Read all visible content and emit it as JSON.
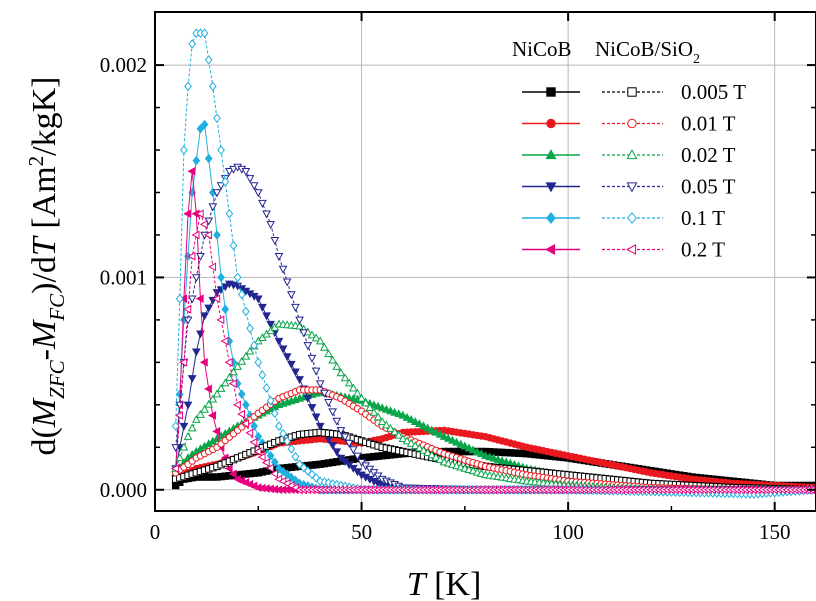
{
  "chart_data": {
    "type": "line",
    "xlim": [
      0,
      160
    ],
    "ylim": [
      -0.0001,
      0.00225
    ],
    "grid": true,
    "x_ticks": [
      {
        "value": 0,
        "label": "0"
      },
      {
        "value": 50,
        "label": "50"
      },
      {
        "value": 100,
        "label": "100"
      },
      {
        "value": 150,
        "label": "150"
      }
    ],
    "y_ticks": [
      {
        "value": 0.0,
        "label": "0.000"
      },
      {
        "value": 0.001,
        "label": "0.001"
      },
      {
        "value": 0.002,
        "label": "0.002"
      }
    ],
    "xlabel": {
      "italic": "T",
      "rest": " [K]"
    },
    "ylabel": {
      "p1": "d(",
      "m1": "M",
      "s1": "ZFC",
      "p2": "-",
      "m2": "M",
      "s2": "FC",
      "p3": ")/d",
      "t": "T",
      "p4": " [Am",
      "sup": "2",
      "p5": "/kgK]"
    },
    "legend": {
      "position": "top-right",
      "headers": {
        "filled_main": "NiCoB",
        "open_main": "NiCoB/SiO",
        "open_sub": "2"
      },
      "entries": [
        "0.005 T",
        "0.01 T",
        "0.02 T",
        "0.05 T",
        "0.1 T",
        "0.2 T"
      ]
    },
    "series": [
      {
        "field": "0.005 T",
        "sample": "NiCoB",
        "color": "#000000",
        "marker": "square",
        "filled": true,
        "points": [
          [
            5,
            2e-05
          ],
          [
            7,
            5e-05
          ],
          [
            10,
            6e-05
          ],
          [
            15,
            6e-05
          ],
          [
            20,
            7e-05
          ],
          [
            25,
            8e-05
          ],
          [
            30,
            0.0001
          ],
          [
            40,
            0.00012
          ],
          [
            50,
            0.00015
          ],
          [
            60,
            0.00017
          ],
          [
            70,
            0.00018
          ],
          [
            80,
            0.00018
          ],
          [
            90,
            0.00017
          ],
          [
            100,
            0.00015
          ],
          [
            110,
            0.00012
          ],
          [
            120,
            9e-05
          ],
          [
            130,
            6e-05
          ],
          [
            140,
            4e-05
          ],
          [
            150,
            2e-05
          ],
          [
            160,
            2e-05
          ]
        ]
      },
      {
        "field": "0.005 T",
        "sample": "NiCoB/SiO2",
        "color": "#000000",
        "marker": "square",
        "filled": false,
        "points": [
          [
            5,
            5e-05
          ],
          [
            10,
            8e-05
          ],
          [
            15,
            0.00011
          ],
          [
            20,
            0.00015
          ],
          [
            25,
            0.00019
          ],
          [
            30,
            0.00023
          ],
          [
            35,
            0.00026
          ],
          [
            40,
            0.00027
          ],
          [
            45,
            0.00026
          ],
          [
            50,
            0.00023
          ],
          [
            55,
            0.0002
          ],
          [
            60,
            0.00018
          ],
          [
            70,
            0.00014
          ],
          [
            80,
            0.00011
          ],
          [
            90,
            9e-05
          ],
          [
            100,
            7e-05
          ],
          [
            110,
            5e-05
          ],
          [
            120,
            3e-05
          ],
          [
            140,
            1e-05
          ],
          [
            160,
            0.0
          ]
        ]
      },
      {
        "field": "0.01 T",
        "sample": "NiCoB",
        "color": "#e8191f",
        "marker": "circle",
        "filled": true,
        "points": [
          [
            5,
            5e-05
          ],
          [
            8,
            8e-05
          ],
          [
            10,
            0.0001
          ],
          [
            15,
            0.00012
          ],
          [
            20,
            0.00015
          ],
          [
            25,
            0.00018
          ],
          [
            30,
            0.00022
          ],
          [
            40,
            0.00024
          ],
          [
            50,
            0.00022
          ],
          [
            55,
            0.00024
          ],
          [
            60,
            0.00027
          ],
          [
            70,
            0.00028
          ],
          [
            80,
            0.00025
          ],
          [
            90,
            0.0002
          ],
          [
            100,
            0.00016
          ],
          [
            110,
            0.00012
          ],
          [
            120,
            8e-05
          ],
          [
            130,
            5e-05
          ],
          [
            140,
            3e-05
          ],
          [
            150,
            2e-05
          ],
          [
            160,
            1e-05
          ]
        ]
      },
      {
        "field": "0.01 T",
        "sample": "NiCoB/SiO2",
        "color": "#e8191f",
        "marker": "circle",
        "filled": false,
        "points": [
          [
            5,
            8e-05
          ],
          [
            8,
            0.00012
          ],
          [
            10,
            0.00015
          ],
          [
            15,
            0.0002
          ],
          [
            20,
            0.00028
          ],
          [
            25,
            0.00036
          ],
          [
            30,
            0.00043
          ],
          [
            35,
            0.00047
          ],
          [
            40,
            0.00047
          ],
          [
            45,
            0.00043
          ],
          [
            50,
            0.00037
          ],
          [
            55,
            0.0003
          ],
          [
            60,
            0.00025
          ],
          [
            70,
            0.00017
          ],
          [
            80,
            0.00011
          ],
          [
            90,
            7e-05
          ],
          [
            100,
            4e-05
          ],
          [
            120,
            1e-05
          ],
          [
            140,
            0.0
          ],
          [
            160,
            0.0
          ]
        ]
      },
      {
        "field": "0.02 T",
        "sample": "NiCoB",
        "color": "#0aa54a",
        "marker": "triangle-up",
        "filled": true,
        "points": [
          [
            5,
            8e-05
          ],
          [
            8,
            0.00015
          ],
          [
            10,
            0.00018
          ],
          [
            15,
            0.00024
          ],
          [
            20,
            0.0003
          ],
          [
            25,
            0.00035
          ],
          [
            30,
            0.0004
          ],
          [
            40,
            0.00046
          ],
          [
            50,
            0.00042
          ],
          [
            60,
            0.00035
          ],
          [
            70,
            0.00025
          ],
          [
            80,
            0.00016
          ],
          [
            90,
            0.0001
          ],
          [
            100,
            6e-05
          ],
          [
            110,
            3e-05
          ],
          [
            130,
            1e-05
          ],
          [
            160,
            0.0
          ]
        ]
      },
      {
        "field": "0.02 T",
        "sample": "NiCoB/SiO2",
        "color": "#0aa54a",
        "marker": "triangle-up",
        "filled": false,
        "points": [
          [
            5,
            0.0001
          ],
          [
            8,
            0.00025
          ],
          [
            10,
            0.00033
          ],
          [
            15,
            0.00045
          ],
          [
            20,
            0.00058
          ],
          [
            25,
            0.0007
          ],
          [
            30,
            0.00078
          ],
          [
            35,
            0.00077
          ],
          [
            40,
            0.0007
          ],
          [
            45,
            0.00055
          ],
          [
            50,
            0.00043
          ],
          [
            55,
            0.00032
          ],
          [
            60,
            0.00024
          ],
          [
            70,
            0.00013
          ],
          [
            80,
            7e-05
          ],
          [
            90,
            4e-05
          ],
          [
            100,
            2e-05
          ],
          [
            120,
            0.0
          ],
          [
            160,
            0.0
          ]
        ]
      },
      {
        "field": "0.05 T",
        "sample": "NiCoB",
        "color": "#23268f",
        "marker": "triangle-down",
        "filled": true,
        "points": [
          [
            5,
            0.0001
          ],
          [
            8,
            0.0004
          ],
          [
            10,
            0.00065
          ],
          [
            12,
            0.00082
          ],
          [
            15,
            0.00093
          ],
          [
            18,
            0.00097
          ],
          [
            20,
            0.00096
          ],
          [
            25,
            0.0009
          ],
          [
            30,
            0.0007
          ],
          [
            35,
            0.00052
          ],
          [
            40,
            0.0003
          ],
          [
            45,
            0.00015
          ],
          [
            50,
            7e-05
          ],
          [
            55,
            2e-05
          ],
          [
            60,
            0.0
          ],
          [
            100,
            0.0
          ],
          [
            160,
            0.0
          ]
        ]
      },
      {
        "field": "0.05 T",
        "sample": "NiCoB/SiO2",
        "color": "#23268f",
        "marker": "triangle-down",
        "filled": false,
        "points": [
          [
            5,
            0.0002
          ],
          [
            8,
            0.0008
          ],
          [
            10,
            0.001
          ],
          [
            12,
            0.0012
          ],
          [
            15,
            0.0014
          ],
          [
            18,
            0.0015
          ],
          [
            20,
            0.00152
          ],
          [
            22,
            0.0015
          ],
          [
            25,
            0.0014
          ],
          [
            28,
            0.00125
          ],
          [
            30,
            0.0011
          ],
          [
            35,
            0.0008
          ],
          [
            40,
            0.0005
          ],
          [
            45,
            0.00028
          ],
          [
            50,
            0.00013
          ],
          [
            55,
            5e-05
          ],
          [
            60,
            1e-05
          ],
          [
            80,
            0.0
          ],
          [
            160,
            0.0
          ]
        ]
      },
      {
        "field": "0.1 T",
        "sample": "NiCoB",
        "color": "#1fb0e0",
        "marker": "diamond",
        "filled": true,
        "points": [
          [
            5,
            0.0001
          ],
          [
            7,
            0.0008
          ],
          [
            9,
            0.0014
          ],
          [
            11,
            0.0017
          ],
          [
            12,
            0.00172
          ],
          [
            14,
            0.0014
          ],
          [
            16,
            0.001
          ],
          [
            18,
            0.0007
          ],
          [
            20,
            0.0005
          ],
          [
            25,
            0.00025
          ],
          [
            30,
            0.0001
          ],
          [
            35,
            3e-05
          ],
          [
            40,
            0.0
          ],
          [
            160,
            0.0
          ]
        ]
      },
      {
        "field": "0.1 T",
        "sample": "NiCoB/SiO2",
        "color": "#1fb0e0",
        "marker": "diamond",
        "filled": false,
        "points": [
          [
            5,
            0.0003
          ],
          [
            6,
            0.0009
          ],
          [
            7,
            0.0016
          ],
          [
            8,
            0.0019
          ],
          [
            9,
            0.0021
          ],
          [
            10,
            0.00215
          ],
          [
            12,
            0.00215
          ],
          [
            14,
            0.0019
          ],
          [
            16,
            0.0016
          ],
          [
            18,
            0.0013
          ],
          [
            20,
            0.001
          ],
          [
            25,
            0.0006
          ],
          [
            30,
            0.0003
          ],
          [
            35,
            0.00012
          ],
          [
            40,
            4e-05
          ],
          [
            50,
            0.0
          ],
          [
            100,
            0.0
          ],
          [
            145,
            -2e-05
          ],
          [
            160,
            0.0
          ]
        ]
      },
      {
        "field": "0.2 T",
        "sample": "NiCoB",
        "color": "#e6007e",
        "marker": "triangle-left",
        "filled": true,
        "points": [
          [
            5,
            0.0001
          ],
          [
            6,
            0.0004
          ],
          [
            7,
            0.0009
          ],
          [
            8,
            0.0013
          ],
          [
            9,
            0.0015
          ],
          [
            10,
            0.0013
          ],
          [
            11,
            0.0009
          ],
          [
            12,
            0.0006
          ],
          [
            14,
            0.00035
          ],
          [
            16,
            0.0002
          ],
          [
            18,
            0.0001
          ],
          [
            20,
            5e-05
          ],
          [
            25,
            1e-05
          ],
          [
            30,
            0.0
          ],
          [
            160,
            0.0
          ]
        ]
      },
      {
        "field": "0.2 T",
        "sample": "NiCoB/SiO2",
        "color": "#e6007e",
        "marker": "triangle-left",
        "filled": false,
        "points": [
          [
            5,
            0.0001
          ],
          [
            7,
            0.0006
          ],
          [
            9,
            0.0011
          ],
          [
            11,
            0.0013
          ],
          [
            13,
            0.0012
          ],
          [
            15,
            0.0009
          ],
          [
            18,
            0.0006
          ],
          [
            20,
            0.0004
          ],
          [
            25,
            0.00018
          ],
          [
            30,
            5e-05
          ],
          [
            35,
            0.0
          ],
          [
            160,
            0.0
          ]
        ]
      }
    ]
  }
}
